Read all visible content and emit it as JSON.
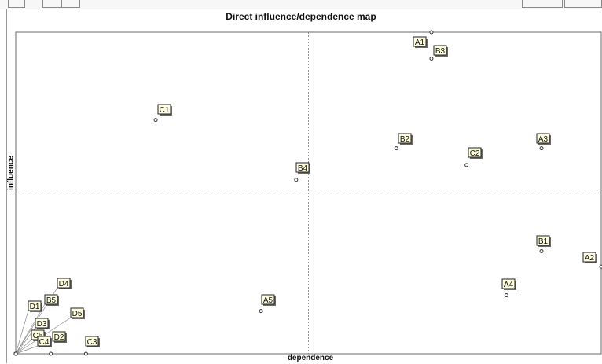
{
  "chart_data": {
    "type": "scatter",
    "title": "Direct influence/dependence map",
    "xlabel": "dependence",
    "ylabel": "influence",
    "xlim": [
      0,
      100
    ],
    "ylim": [
      0,
      100
    ],
    "midlines": {
      "x": 50,
      "y": 50
    },
    "grid": false,
    "points": [
      {
        "label": "A1",
        "x": 71.0,
        "y": 100.0
      },
      {
        "label": "B3",
        "x": 71.0,
        "y": 91.8
      },
      {
        "label": "C1",
        "x": 23.9,
        "y": 72.7
      },
      {
        "label": "B2",
        "x": 65.0,
        "y": 63.9
      },
      {
        "label": "A3",
        "x": 89.8,
        "y": 63.9
      },
      {
        "label": "C2",
        "x": 77.0,
        "y": 58.7
      },
      {
        "label": "B4",
        "x": 47.9,
        "y": 54.1
      },
      {
        "label": "B1",
        "x": 89.8,
        "y": 31.9
      },
      {
        "label": "A2",
        "x": 100.0,
        "y": 27.1
      },
      {
        "label": "A4",
        "x": 83.8,
        "y": 18.2
      },
      {
        "label": "A5",
        "x": 41.9,
        "y": 13.3
      },
      {
        "label": "D4",
        "x": 0.0,
        "y": 0.0
      },
      {
        "label": "D1",
        "x": 0.0,
        "y": 0.0
      },
      {
        "label": "B5",
        "x": 0.0,
        "y": 0.0
      },
      {
        "label": "D5",
        "x": 0.0,
        "y": 0.0
      },
      {
        "label": "D3",
        "x": 0.0,
        "y": 0.0
      },
      {
        "label": "C5",
        "x": 0.0,
        "y": 0.0
      },
      {
        "label": "C4",
        "x": 0.0,
        "y": 0.0
      },
      {
        "label": "D2",
        "x": 6.0,
        "y": 0.0
      },
      {
        "label": "C3",
        "x": 12.0,
        "y": 0.0
      }
    ]
  }
}
